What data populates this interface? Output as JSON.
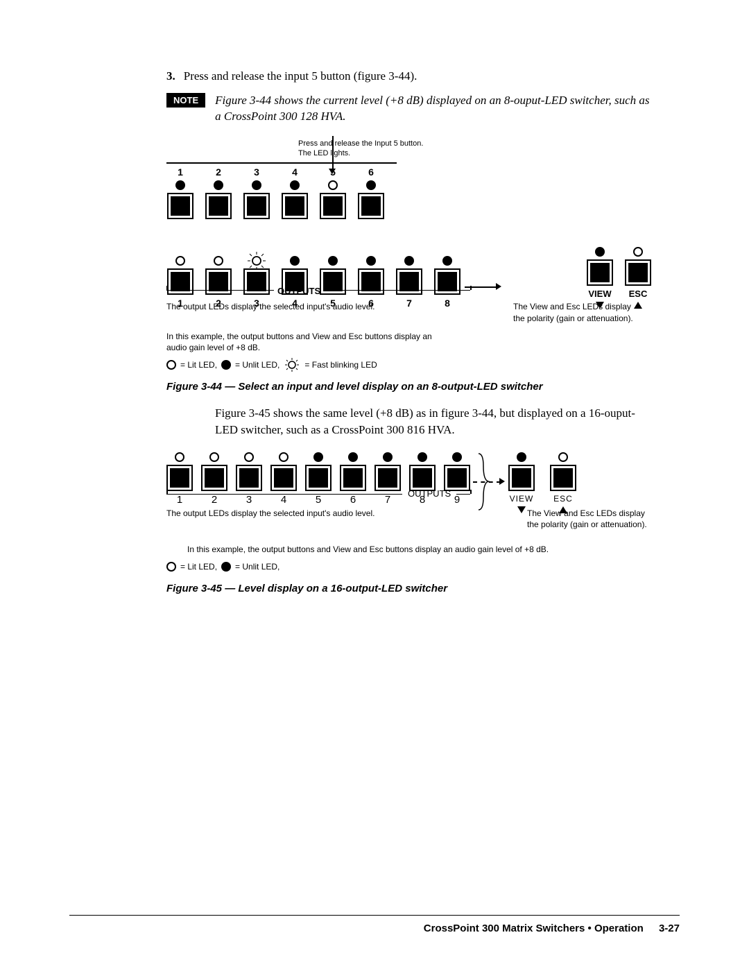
{
  "step": {
    "number": "3",
    "text": "Press and release the input 5 button (figure 3-44)."
  },
  "note": {
    "label": "NOTE",
    "text": "Figure 3-44 shows the current level (+8 dB) displayed on an 8-ouput-LED switcher, such as a CrossPoint 300  128 HVA."
  },
  "diagram1": {
    "instruction1": "Press and release the Input 5 button.",
    "instruction2": "The LED lights.",
    "inputs": [
      {
        "n": "1",
        "led": "unlit"
      },
      {
        "n": "2",
        "led": "unlit"
      },
      {
        "n": "3",
        "led": "unlit"
      },
      {
        "n": "4",
        "led": "unlit"
      },
      {
        "n": "5",
        "led": "lit"
      },
      {
        "n": "6",
        "led": "unlit"
      }
    ],
    "outputs": [
      {
        "n": "1",
        "led": "lit"
      },
      {
        "n": "2",
        "led": "lit"
      },
      {
        "n": "3",
        "led": "blink"
      },
      {
        "n": "4",
        "led": "unlit"
      },
      {
        "n": "5",
        "led": "unlit"
      },
      {
        "n": "6",
        "led": "unlit"
      },
      {
        "n": "7",
        "led": "unlit"
      },
      {
        "n": "8",
        "led": "unlit"
      }
    ],
    "view_label": "VIEW",
    "esc_label": "ESC",
    "view_led": "unlit",
    "esc_led": "lit",
    "outputs_label": "OUTPUTS",
    "note_output": "The output LEDs display the selected input's audio level.",
    "note_viewesc_line1": "The View and Esc LEDs display",
    "note_viewesc_line2": "the polarity (gain or attenuation).",
    "note_example": "In this example, the output buttons and View and Esc buttons display an audio gain level of +8 dB.",
    "legend_lit": "= Lit LED,",
    "legend_unlit": "= Unlit LED,",
    "legend_blink": "= Fast blinking LED",
    "caption": "Figure 3-44 — Select an input and level display on an 8-output-LED switcher"
  },
  "paragraph2": "Figure 3-45 shows the same level (+8 dB) as in figure 3-44, but displayed on a 16-ouput-LED switcher, such as a CrossPoint 300  816 HVA.",
  "diagram2": {
    "outputs": [
      {
        "n": "1",
        "led": "lit"
      },
      {
        "n": "2",
        "led": "lit"
      },
      {
        "n": "3",
        "led": "lit"
      },
      {
        "n": "4",
        "led": "lit"
      },
      {
        "n": "5",
        "led": "unlit"
      },
      {
        "n": "6",
        "led": "unlit"
      },
      {
        "n": "7",
        "led": "unlit"
      },
      {
        "n": "8",
        "led": "unlit"
      },
      {
        "n": "9",
        "led": "unlit"
      }
    ],
    "view_label": "VIEW",
    "esc_label": "ESC",
    "view_led": "unlit",
    "esc_led": "lit",
    "outputs_label": "OUTPUTS",
    "note_output": "The output LEDs display the selected input's audio level.",
    "note_viewesc": "The View and Esc LEDs display the polarity (gain or attenuation).",
    "note_example": "In this example, the output buttons and View and Esc buttons display an audio gain level of +8 dB.",
    "legend_lit": "= Lit LED,",
    "legend_unlit": "= Unlit LED,",
    "caption": "Figure 3-45 — Level display on a 16-output-LED switcher"
  },
  "footer": {
    "text": "CrossPoint 300 Matrix Switchers • Operation",
    "page": "3-27"
  }
}
